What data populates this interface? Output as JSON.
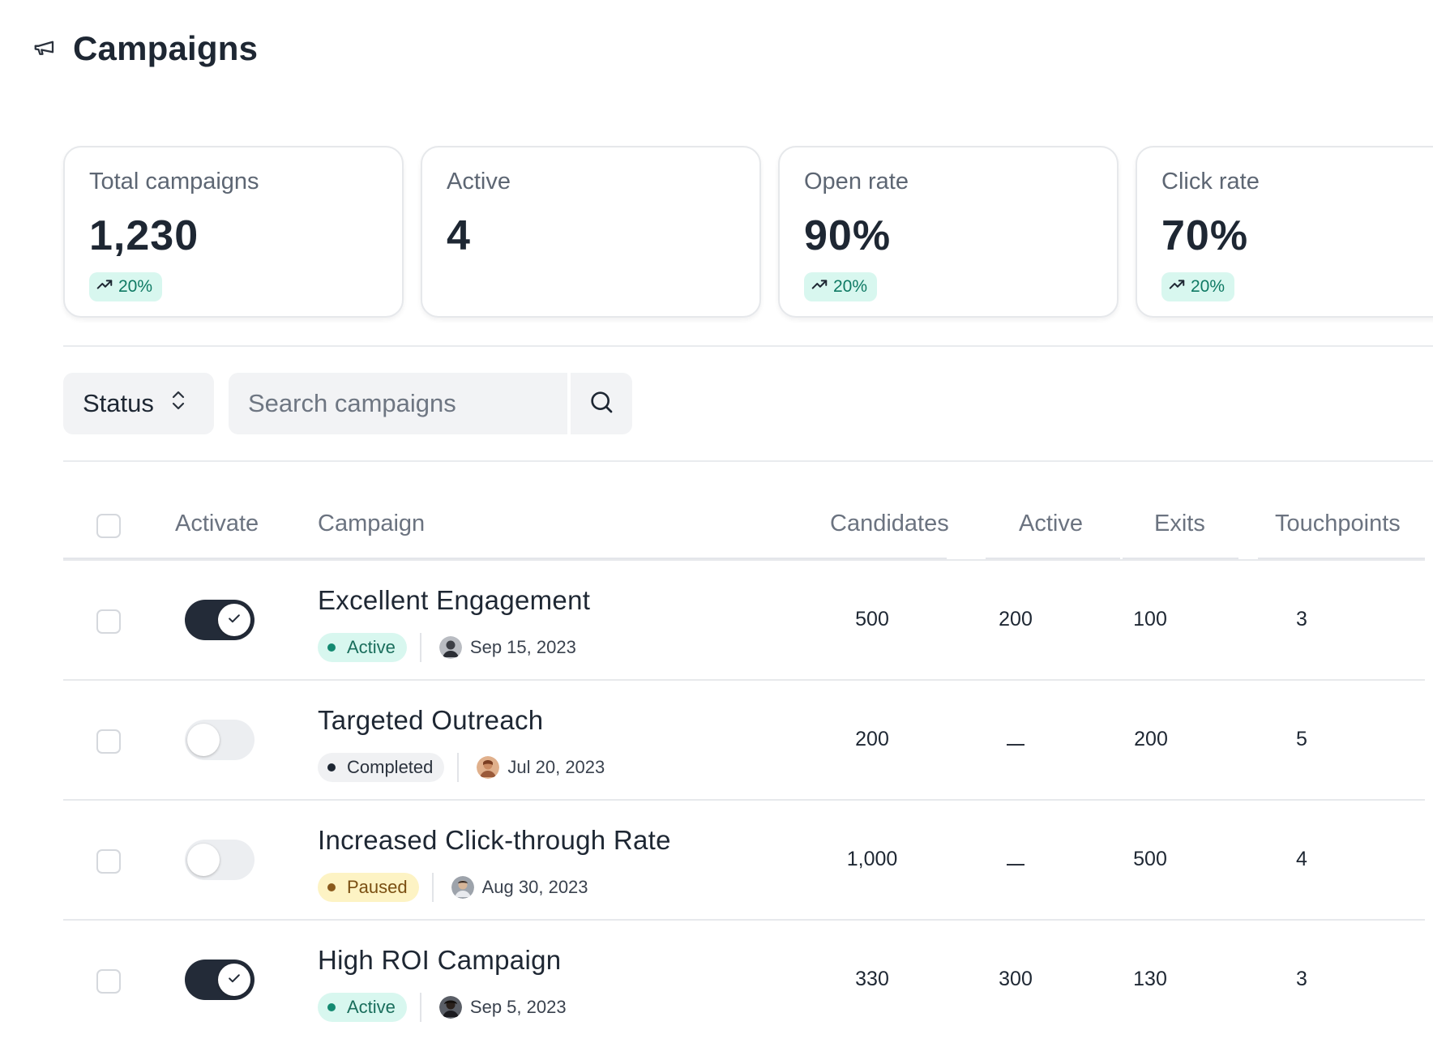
{
  "header": {
    "title": "Campaigns",
    "icon": "megaphone-icon"
  },
  "stats": [
    {
      "label": "Total campaigns",
      "value": "1,230",
      "trend": "20%"
    },
    {
      "label": "Active",
      "value": "4",
      "trend": null
    },
    {
      "label": "Open rate",
      "value": "90%",
      "trend": "20%"
    },
    {
      "label": "Click rate",
      "value": "70%",
      "trend": "20%"
    }
  ],
  "filters": {
    "status_label": "Status",
    "search_placeholder": "Search campaigns"
  },
  "table": {
    "columns": {
      "activate": "Activate",
      "campaign": "Campaign",
      "candidates": "Candidates",
      "active": "Active",
      "exits": "Exits",
      "touchpoints": "Touchpoints"
    },
    "rows": [
      {
        "name": "Excellent Engagement",
        "status": "Active",
        "date": "Sep 15, 2023",
        "activated": true,
        "candidates": "500",
        "active": "200",
        "exits": "100",
        "touchpoints": "3"
      },
      {
        "name": "Targeted Outreach",
        "status": "Completed",
        "date": "Jul 20, 2023",
        "activated": false,
        "candidates": "200",
        "active": null,
        "exits": "200",
        "touchpoints": "5"
      },
      {
        "name": "Increased Click-through Rate",
        "status": "Paused",
        "date": "Aug 30, 2023",
        "activated": false,
        "candidates": "1,000",
        "active": null,
        "exits": "500",
        "touchpoints": "4"
      },
      {
        "name": "High ROI Campaign",
        "status": "Active",
        "date": "Sep 5, 2023",
        "activated": true,
        "candidates": "330",
        "active": "300",
        "exits": "130",
        "touchpoints": "3"
      }
    ]
  },
  "colors": {
    "toggle_on": "#232b38",
    "badge_active_bg": "#d8f7ef",
    "badge_paused_bg": "#fdf3c4",
    "badge_completed_bg": "#f0f1f3"
  }
}
